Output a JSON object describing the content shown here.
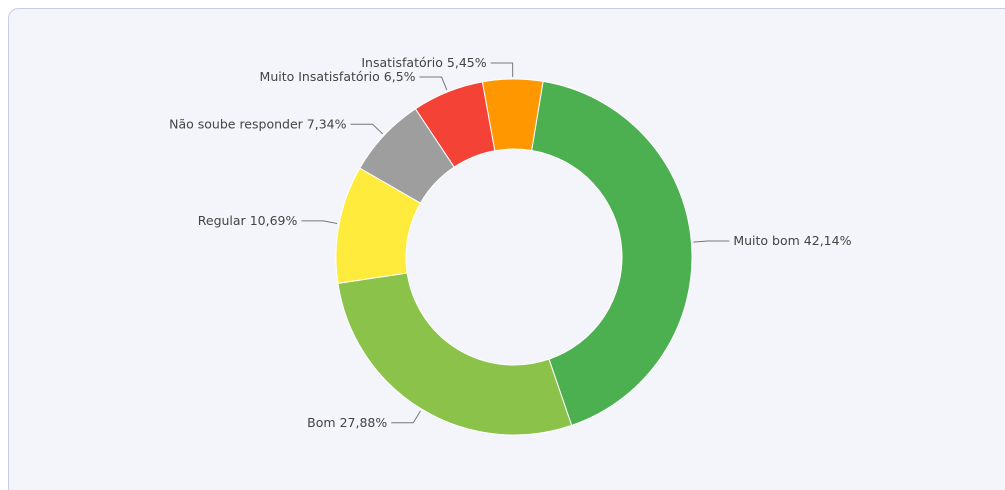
{
  "chart_data": {
    "type": "donut",
    "categories": [
      "Muito bom",
      "Bom",
      "Regular",
      "Não soube responder",
      "Muito Insatisfatório",
      "Insatisfatório"
    ],
    "values": [
      42.14,
      27.88,
      10.69,
      7.34,
      6.5,
      5.45
    ],
    "value_labels": [
      "42,14%",
      "27,88%",
      "10,69%",
      "7,34%",
      "6,5%",
      "5,45%"
    ],
    "colors": [
      "#4caf50",
      "#8bc34a",
      "#ffeb3b",
      "#9e9e9e",
      "#f44336",
      "#ff9800"
    ]
  }
}
